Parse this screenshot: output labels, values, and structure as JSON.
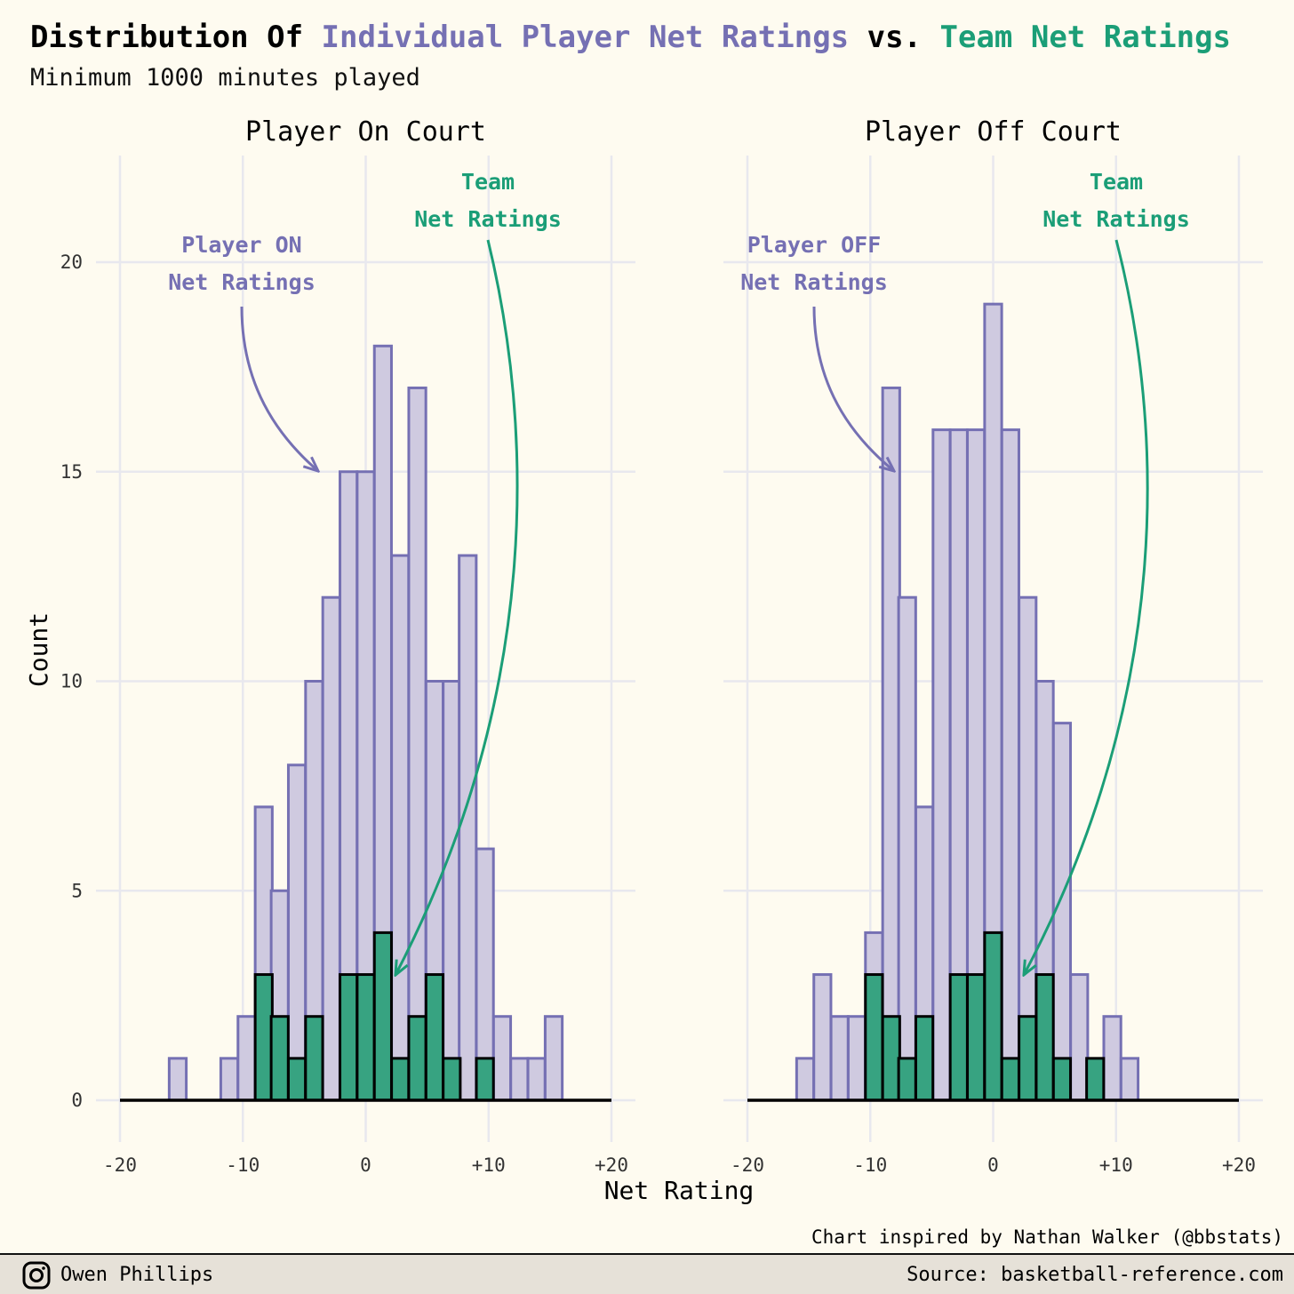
{
  "header": {
    "title_prefix": "Distribution Of ",
    "title_player": "Individual Player Net Ratings",
    "title_mid": " vs. ",
    "title_team": "Team Net Ratings",
    "subtitle": "Minimum 1000 minutes played"
  },
  "colors": {
    "player_fill": "#cfcae0",
    "player_line": "#7570b3",
    "team_fill": "#37a381",
    "team_line": "#000000",
    "team_text": "#1b9e77",
    "grid": "#e8e8ee",
    "background": "#fefbf0"
  },
  "chart_data": {
    "type": "bar",
    "xlabel": "Net Rating",
    "ylabel": "Count",
    "xlim": [
      -20,
      20
    ],
    "ylim": [
      0,
      20
    ],
    "x_ticks": [
      -20,
      -10,
      0,
      10,
      20
    ],
    "x_tick_labels": [
      "-20",
      "-10",
      "0",
      "+10",
      "+20"
    ],
    "y_ticks": [
      0,
      5,
      10,
      15,
      20
    ],
    "y_tick_labels": [
      "0",
      "5",
      "10",
      "15",
      "20"
    ],
    "grid": true,
    "bin_width": 1.39,
    "bin_centers": [
      -15.3,
      -13.9,
      -12.5,
      -11.1,
      -9.7,
      -8.3,
      -7.0,
      -5.6,
      -4.2,
      -2.8,
      -1.4,
      0.0,
      1.4,
      2.8,
      4.2,
      5.6,
      7.0,
      8.3,
      9.7,
      11.1,
      12.5,
      13.9,
      15.3
    ],
    "panels": [
      {
        "title": "Player On Court",
        "series": [
          {
            "name": "Player ON Net Ratings",
            "values": [
              1,
              0,
              0,
              1,
              2,
              7,
              5,
              8,
              10,
              12,
              15,
              15,
              18,
              13,
              17,
              10,
              10,
              13,
              6,
              2,
              1,
              1,
              2
            ]
          },
          {
            "name": "Team Net Ratings",
            "values": [
              0,
              0,
              0,
              0,
              0,
              3,
              2,
              1,
              2,
              0,
              3,
              3,
              4,
              1,
              2,
              3,
              1,
              0,
              1,
              0,
              0,
              0,
              0
            ]
          }
        ],
        "annotations": [
          {
            "text_lines": [
              "Player ON",
              "Net Ratings"
            ],
            "series": 0
          },
          {
            "text_lines": [
              "Team",
              "Net Ratings"
            ],
            "series": 1
          }
        ]
      },
      {
        "title": "Player Off Court",
        "series": [
          {
            "name": "Player OFF Net Ratings",
            "values": [
              1,
              3,
              2,
              2,
              4,
              17,
              12,
              7,
              16,
              16,
              16,
              19,
              16,
              12,
              10,
              9,
              3,
              0,
              2,
              1,
              0,
              0,
              0
            ]
          },
          {
            "name": "Team Net Ratings",
            "values": [
              0,
              0,
              0,
              0,
              3,
              2,
              1,
              2,
              0,
              3,
              3,
              4,
              1,
              2,
              3,
              1,
              0,
              1,
              0,
              0,
              0,
              0,
              0
            ]
          }
        ],
        "annotations": [
          {
            "text_lines": [
              "Player OFF",
              "Net Ratings"
            ],
            "series": 0
          },
          {
            "text_lines": [
              "Team",
              "Net Ratings"
            ],
            "series": 1
          }
        ]
      }
    ]
  },
  "footer": {
    "inspired": "Chart inspired by Nathan Walker (@bbstats)",
    "author": "Owen Phillips",
    "source": "Source: basketball-reference.com",
    "icon": "instagram-icon"
  }
}
